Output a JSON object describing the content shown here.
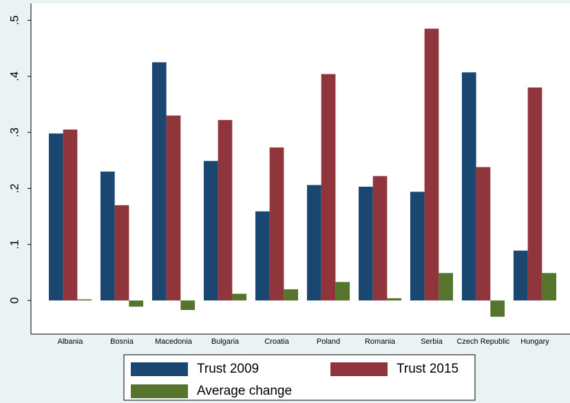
{
  "chart_data": {
    "type": "bar",
    "categories": [
      "Albania",
      "Bosnia",
      "Macedonia",
      "Bulgaria",
      "Croatia",
      "Poland",
      "Romania",
      "Serbia",
      "Czech Republic",
      "Hungary"
    ],
    "series": [
      {
        "name": "Trust 2009",
        "color": "#1a476f",
        "values": [
          0.298,
          0.23,
          0.425,
          0.249,
          0.159,
          0.206,
          0.203,
          0.194,
          0.407,
          0.089
        ]
      },
      {
        "name": "Trust 2015",
        "color": "#90353b",
        "values": [
          0.305,
          0.17,
          0.33,
          0.322,
          0.273,
          0.404,
          0.222,
          0.485,
          0.238,
          0.38
        ]
      },
      {
        "name": "Average change",
        "color": "#55752f",
        "values": [
          0.002,
          -0.011,
          -0.017,
          0.012,
          0.02,
          0.033,
          0.004,
          0.049,
          -0.029,
          0.049
        ]
      }
    ],
    "ylim": [
      -0.06,
      0.53
    ],
    "yticks": [
      0,
      {
        "value": 0.1,
        "label": ".1"
      },
      {
        "value": 0.2,
        "label": ".2"
      },
      {
        "value": 0.3,
        "label": ".3"
      },
      {
        "value": 0.4,
        "label": ".4"
      },
      {
        "value": 0.5,
        "label": ".5"
      }
    ],
    "grid": false
  }
}
